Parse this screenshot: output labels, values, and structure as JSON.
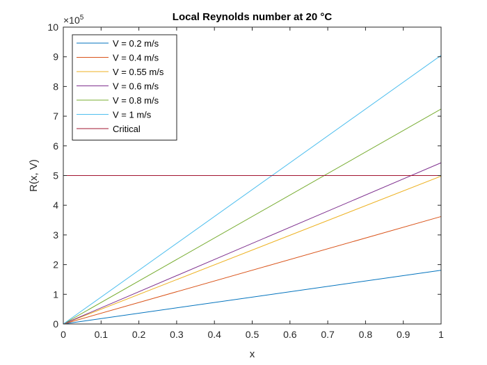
{
  "chart_data": {
    "type": "line",
    "title": "Local Reynolds number at 20 °C",
    "xlabel": "x",
    "ylabel": "R(x, V)",
    "y_exponent_label": "×10",
    "y_exponent_power": "5",
    "y_multiplier": 100000,
    "xlim": [
      0,
      1
    ],
    "ylim": [
      0,
      10
    ],
    "xticks": [
      "0",
      "0.1",
      "0.2",
      "0.3",
      "0.4",
      "0.5",
      "0.6",
      "0.7",
      "0.8",
      "0.9",
      "1"
    ],
    "yticks": [
      "0",
      "1",
      "2",
      "3",
      "4",
      "5",
      "6",
      "7",
      "8",
      "9",
      "10"
    ],
    "grid": false,
    "legend_position": "top-left",
    "series": [
      {
        "name": "V = 0.2 m/s",
        "color": "#0072BD",
        "x": [
          0,
          1
        ],
        "y": [
          0,
          1.81
        ]
      },
      {
        "name": "V = 0.4 m/s",
        "color": "#D95319",
        "x": [
          0,
          1
        ],
        "y": [
          0,
          3.62
        ]
      },
      {
        "name": "V = 0.55 m/s",
        "color": "#EDB120",
        "x": [
          0,
          1
        ],
        "y": [
          0,
          4.98
        ]
      },
      {
        "name": "V = 0.6 m/s",
        "color": "#7E2F8E",
        "x": [
          0,
          1
        ],
        "y": [
          0,
          5.43
        ]
      },
      {
        "name": "V = 0.8 m/s",
        "color": "#77AC30",
        "x": [
          0,
          1
        ],
        "y": [
          0,
          7.24
        ]
      },
      {
        "name": "V = 1 m/s",
        "color": "#4DBEEE",
        "x": [
          0,
          1
        ],
        "y": [
          0,
          9.05
        ]
      },
      {
        "name": "Critical",
        "color": "#A2142F",
        "x": [
          0,
          1
        ],
        "y": [
          5,
          5
        ]
      }
    ]
  }
}
